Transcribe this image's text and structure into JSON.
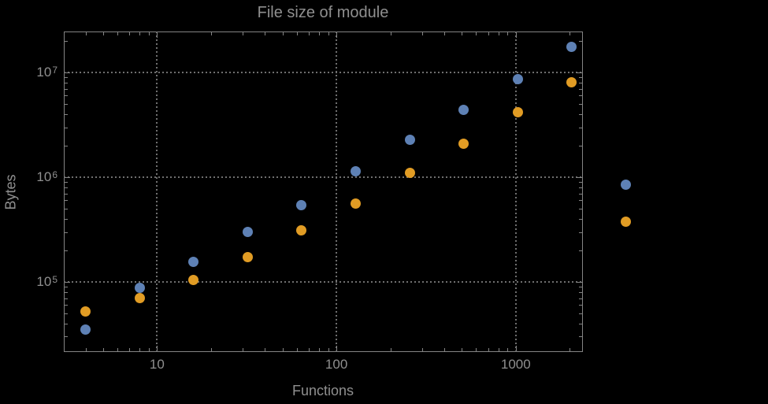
{
  "chart_data": {
    "type": "scatter",
    "title": "File size of module",
    "xlabel": "Functions",
    "ylabel": "Bytes",
    "x_scale": "log",
    "y_scale": "log",
    "grid": true,
    "legend": "none",
    "xlim": [
      3.02,
      2367
    ],
    "ylim": [
      21400,
      24600000
    ],
    "x": [
      4,
      8,
      16,
      32,
      64,
      128,
      256,
      512,
      1024,
      2048,
      4096
    ],
    "series": [
      {
        "name": "blue-series",
        "color": "#5e81b5",
        "values": [
          35000,
          87000,
          155000,
          298000,
          545000,
          1130000,
          2260000,
          4360000,
          8560000,
          17400000,
          855000
        ]
      },
      {
        "name": "orange-series",
        "color": "#e19c24",
        "values": [
          52000,
          70000,
          105000,
          171000,
          308000,
          555000,
          1090000,
          2100000,
          4140000,
          8000000,
          373000
        ]
      }
    ],
    "x_ticks": [
      {
        "label": "10",
        "value": 10
      },
      {
        "label": "100",
        "value": 100
      },
      {
        "label": "1000",
        "value": 1000
      }
    ],
    "y_ticks": [
      {
        "base": "10",
        "exp": "5",
        "value": 100000
      },
      {
        "base": "10",
        "exp": "6",
        "value": 1000000
      },
      {
        "base": "10",
        "exp": "7",
        "value": 10000000
      }
    ],
    "x_minor_ticks": [
      4,
      5,
      6,
      7,
      8,
      9,
      20,
      30,
      40,
      50,
      60,
      70,
      80,
      90,
      200,
      300,
      400,
      500,
      600,
      700,
      800,
      900,
      2000
    ],
    "y_minor_ticks": [
      30000,
      40000,
      50000,
      60000,
      70000,
      80000,
      90000,
      200000,
      300000,
      400000,
      500000,
      600000,
      700000,
      800000,
      900000,
      2000000,
      3000000,
      4000000,
      5000000,
      6000000,
      7000000,
      8000000,
      9000000,
      20000000
    ],
    "colors": {
      "background": "#000000",
      "frame": "#848484",
      "grid": "#6f6f6f",
      "text": "#8f8f8f"
    }
  }
}
